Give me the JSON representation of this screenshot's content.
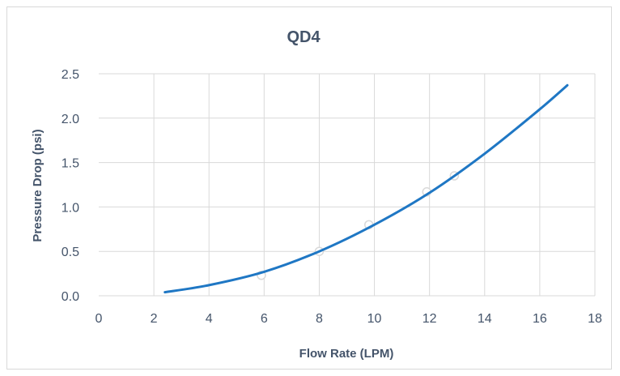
{
  "chart_data": {
    "type": "scatter",
    "title": "QD4",
    "xlabel": "Flow Rate (LPM)",
    "ylabel": "Pressure Drop (psi)",
    "xlim": [
      0,
      18
    ],
    "ylim": [
      0,
      2.5
    ],
    "x_ticks": [
      "0",
      "2",
      "4",
      "6",
      "8",
      "10",
      "12",
      "14",
      "16",
      "18"
    ],
    "y_ticks": [
      "0.0",
      "0.5",
      "1.0",
      "1.5",
      "2.0",
      "2.5"
    ],
    "grid": true,
    "series": [
      {
        "type": "scatter",
        "marker": "circle",
        "color": "#d9d9d9",
        "points": [
          {
            "x": 5.9,
            "y": 0.23
          },
          {
            "x": 8.0,
            "y": 0.5
          },
          {
            "x": 9.8,
            "y": 0.8
          },
          {
            "x": 11.9,
            "y": 1.17
          },
          {
            "x": 12.9,
            "y": 1.35
          }
        ]
      },
      {
        "type": "line",
        "color": "#1f77c4",
        "fit": "quadratic",
        "x_range": [
          2.4,
          17.0
        ],
        "points": [
          {
            "x": 2.4,
            "y": 0.04
          },
          {
            "x": 4.0,
            "y": 0.12
          },
          {
            "x": 6.0,
            "y": 0.27
          },
          {
            "x": 8.0,
            "y": 0.5
          },
          {
            "x": 10.0,
            "y": 0.8
          },
          {
            "x": 12.0,
            "y": 1.16
          },
          {
            "x": 14.0,
            "y": 1.6
          },
          {
            "x": 16.0,
            "y": 2.1
          },
          {
            "x": 17.0,
            "y": 2.37
          }
        ]
      }
    ]
  }
}
